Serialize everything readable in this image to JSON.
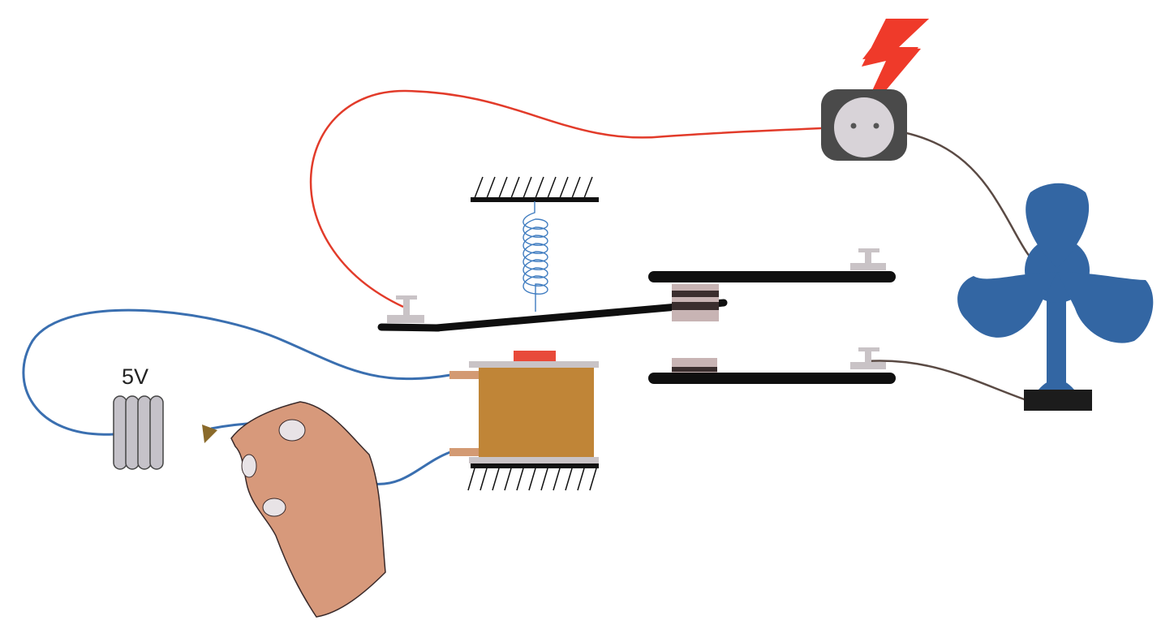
{
  "battery": {
    "label": "5V"
  },
  "colors": {
    "positive_wire": "#3a6fb0",
    "mains_wire": "#e23b2a",
    "neutral_wire": "#5a4a44",
    "fan": "#3366a3",
    "coil": "#c08537",
    "armature": "#0f0f0f",
    "socket_body": "#4a4a4a",
    "socket_face": "#d8d3d8",
    "lightning": "#ef3a2a",
    "skin": "#d7997b",
    "battery_cells": "#c5c2c9",
    "terminal": "#c9c3c6",
    "spring": "#3f7cc0"
  },
  "icons": {
    "battery": "battery-icon",
    "hand": "hand-icon",
    "socket": "power-socket-icon",
    "lightning": "lightning-icon",
    "fan": "fan-icon",
    "coil": "electromagnet-coil-icon",
    "spring": "spring-icon"
  }
}
